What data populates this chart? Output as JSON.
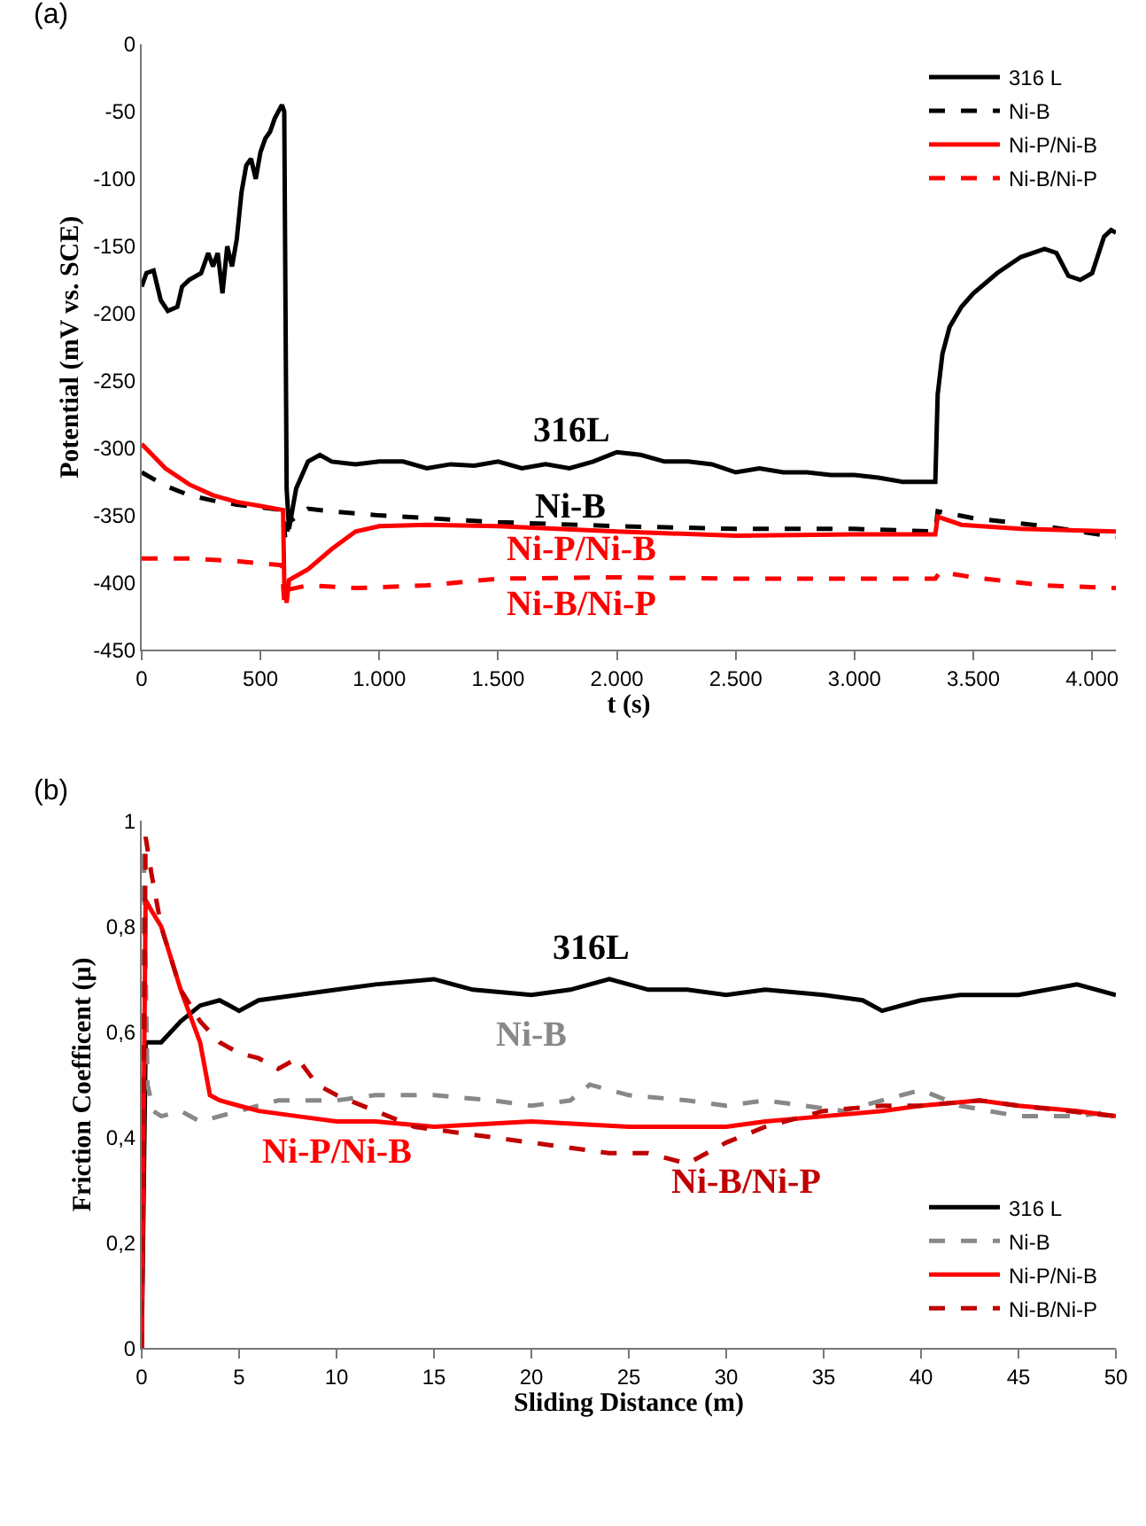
{
  "chart_data": [
    {
      "type": "line",
      "xlabel": "t (s)",
      "ylabel": "Potential (mV vs. SCE)",
      "xlim": [
        0,
        4100
      ],
      "ylim": [
        -450,
        0
      ],
      "xticks": [
        0,
        500,
        {
          "value": 1000,
          "label": "1.000"
        },
        {
          "value": 1500,
          "label": "1.500"
        },
        {
          "value": 2000,
          "label": "2.000"
        },
        {
          "value": 2500,
          "label": "2.500"
        },
        {
          "value": 3000,
          "label": "3.000"
        },
        {
          "value": 3500,
          "label": "3.500"
        },
        {
          "value": 4000,
          "label": "4.000"
        }
      ],
      "yticks": [
        0,
        -50,
        -100,
        -150,
        -200,
        -250,
        -300,
        -350,
        -400,
        -450
      ],
      "legend": "top right",
      "series": [
        {
          "name": "316 L",
          "color": "#000000",
          "line_style": "solid",
          "x": [
            0,
            20,
            50,
            80,
            110,
            150,
            170,
            200,
            250,
            280,
            300,
            320,
            340,
            360,
            380,
            400,
            420,
            440,
            460,
            480,
            500,
            520,
            540,
            560,
            590,
            600,
            610,
            620,
            650,
            700,
            750,
            800,
            900,
            1000,
            1100,
            1200,
            1300,
            1400,
            1500,
            1600,
            1700,
            1800,
            1900,
            2000,
            2100,
            2200,
            2300,
            2400,
            2500,
            2600,
            2700,
            2800,
            2900,
            3000,
            3100,
            3200,
            3300,
            3340,
            3350,
            3370,
            3400,
            3450,
            3500,
            3600,
            3700,
            3800,
            3850,
            3900,
            3950,
            4000,
            4050,
            4080,
            4100
          ],
          "values": [
            -180,
            -170,
            -168,
            -190,
            -198,
            -195,
            -180,
            -175,
            -170,
            -155,
            -165,
            -155,
            -185,
            -150,
            -165,
            -145,
            -110,
            -90,
            -85,
            -100,
            -80,
            -70,
            -65,
            -55,
            -45,
            -50,
            -330,
            -360,
            -330,
            -310,
            -305,
            -310,
            -312,
            -310,
            -310,
            -315,
            -312,
            -313,
            -310,
            -315,
            -312,
            -315,
            -310,
            -303,
            -305,
            -310,
            -310,
            -312,
            -318,
            -315,
            -318,
            -318,
            -320,
            -320,
            -322,
            -325,
            -325,
            -325,
            -260,
            -230,
            -210,
            -195,
            -185,
            -170,
            -158,
            -152,
            -155,
            -172,
            -175,
            -170,
            -143,
            -138,
            -140
          ]
        },
        {
          "name": "Ni-B",
          "color": "#000000",
          "line_style": "dashed",
          "x": [
            0,
            100,
            200,
            300,
            400,
            500,
            595,
            605,
            620,
            700,
            800,
            1000,
            1500,
            2000,
            2500,
            3000,
            3340,
            3350,
            3500,
            3800,
            4100
          ],
          "values": [
            -318,
            -328,
            -335,
            -339,
            -342,
            -344,
            -346,
            -370,
            -355,
            -345,
            -347,
            -350,
            -355,
            -358,
            -360,
            -360,
            -362,
            -347,
            -352,
            -358,
            -366
          ]
        },
        {
          "name": "Ni-P/Ni-B",
          "color": "#ff0000",
          "line_style": "solid",
          "x": [
            0,
            100,
            200,
            300,
            400,
            500,
            595,
            600,
            610,
            620,
            700,
            800,
            900,
            1000,
            1200,
            1500,
            2000,
            2500,
            3000,
            3340,
            3350,
            3450,
            3700,
            4100
          ],
          "values": [
            -297,
            -315,
            -327,
            -335,
            -340,
            -343,
            -346,
            -400,
            -415,
            -398,
            -390,
            -375,
            -362,
            -358,
            -357,
            -358,
            -362,
            -365,
            -364,
            -364,
            -351,
            -357,
            -360,
            -362
          ]
        },
        {
          "name": "Ni-B/Ni-P",
          "color": "#ff0000",
          "line_style": "dashed",
          "x": [
            0,
            200,
            400,
            590,
            600,
            620,
            700,
            900,
            1200,
            1500,
            2000,
            2500,
            3000,
            3340,
            3360,
            3500,
            3800,
            4100
          ],
          "values": [
            -382,
            -382,
            -384,
            -387,
            -415,
            -405,
            -402,
            -404,
            -402,
            -397,
            -396,
            -397,
            -397,
            -397,
            -392,
            -396,
            -402,
            -404
          ]
        }
      ],
      "annotations": [
        "316L",
        "Ni-B",
        "Ni-P/Ni-B",
        "Ni-B/Ni-P",
        "(a)"
      ]
    },
    {
      "type": "line",
      "xlabel": "Sliding Distance (m)",
      "ylabel": "Friction Coefficent (μ)",
      "xlim": [
        0,
        50
      ],
      "ylim": [
        0,
        1
      ],
      "xticks": [
        0,
        5,
        10,
        15,
        20,
        25,
        30,
        35,
        40,
        45,
        50
      ],
      "yticks": [
        0,
        {
          "value": 0.2,
          "label": "0,2"
        },
        {
          "value": 0.4,
          "label": "0,4"
        },
        {
          "value": 0.6,
          "label": "0,6"
        },
        {
          "value": 0.8,
          "label": "0,8"
        },
        1
      ],
      "legend": "bottom right",
      "series": [
        {
          "name": "316 L",
          "color": "#000000",
          "line_style": "solid",
          "x": [
            0,
            0.2,
            1,
            2,
            3,
            4,
            5,
            6,
            8,
            10,
            12,
            15,
            17,
            20,
            22,
            24,
            26,
            28,
            30,
            32,
            35,
            37,
            38,
            40,
            42,
            45,
            48,
            50
          ],
          "values": [
            0,
            0.58,
            0.58,
            0.62,
            0.65,
            0.66,
            0.64,
            0.66,
            0.67,
            0.68,
            0.69,
            0.7,
            0.68,
            0.67,
            0.68,
            0.7,
            0.68,
            0.68,
            0.67,
            0.68,
            0.67,
            0.66,
            0.64,
            0.66,
            0.67,
            0.67,
            0.69,
            0.67
          ]
        },
        {
          "name": "Ni-B",
          "color": "#888888",
          "line_style": "dashed",
          "x": [
            0,
            0.1,
            0.3,
            0.6,
            1,
            2,
            3,
            5,
            7,
            10,
            12,
            15,
            18,
            20,
            22,
            23,
            25,
            28,
            30,
            32,
            34,
            36,
            38,
            40,
            42,
            45,
            48,
            50
          ],
          "values": [
            0,
            0.95,
            0.5,
            0.45,
            0.44,
            0.45,
            0.43,
            0.45,
            0.47,
            0.47,
            0.48,
            0.48,
            0.47,
            0.46,
            0.47,
            0.5,
            0.48,
            0.47,
            0.46,
            0.47,
            0.46,
            0.45,
            0.47,
            0.49,
            0.46,
            0.44,
            0.44,
            0.45
          ]
        },
        {
          "name": "Ni-P/Ni-B",
          "color": "#ff0000",
          "line_style": "solid",
          "x": [
            0,
            0.2,
            0.5,
            1,
            2,
            3,
            3.5,
            4,
            5,
            6,
            8,
            10,
            12,
            15,
            20,
            25,
            30,
            32,
            35,
            38,
            40,
            43,
            45,
            48,
            50
          ],
          "values": [
            0,
            0.85,
            0.83,
            0.8,
            0.68,
            0.58,
            0.48,
            0.47,
            0.46,
            0.45,
            0.44,
            0.43,
            0.43,
            0.42,
            0.43,
            0.42,
            0.42,
            0.43,
            0.44,
            0.45,
            0.46,
            0.47,
            0.46,
            0.45,
            0.44
          ]
        },
        {
          "name": "Ni-B/Ni-P",
          "color": "#c00000",
          "line_style": "dashed",
          "x": [
            0,
            0.2,
            0.5,
            1,
            2,
            3,
            4,
            5,
            6,
            7,
            8,
            9,
            10,
            12,
            14,
            16,
            18,
            20,
            22,
            24,
            26,
            28,
            29,
            30,
            32,
            35,
            38,
            40,
            43,
            45,
            50
          ],
          "values": [
            0,
            0.97,
            0.9,
            0.8,
            0.68,
            0.62,
            0.58,
            0.56,
            0.55,
            0.53,
            0.55,
            0.5,
            0.48,
            0.45,
            0.42,
            0.41,
            0.4,
            0.39,
            0.38,
            0.37,
            0.37,
            0.35,
            0.37,
            0.39,
            0.42,
            0.45,
            0.46,
            0.46,
            0.47,
            0.46,
            0.44
          ]
        }
      ],
      "annotations": [
        "316L",
        "Ni-B",
        "Ni-P/Ni-B",
        "Ni-B/Ni-P",
        "(b)"
      ]
    }
  ]
}
